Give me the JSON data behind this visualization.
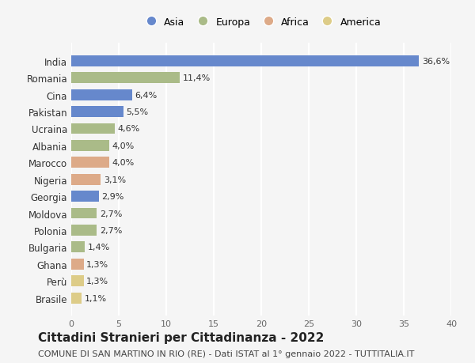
{
  "countries": [
    "India",
    "Romania",
    "Cina",
    "Pakistan",
    "Ucraina",
    "Albania",
    "Marocco",
    "Nigeria",
    "Georgia",
    "Moldova",
    "Polonia",
    "Bulgaria",
    "Ghana",
    "Perù",
    "Brasile"
  ],
  "values": [
    36.6,
    11.4,
    6.4,
    5.5,
    4.6,
    4.0,
    4.0,
    3.1,
    2.9,
    2.7,
    2.7,
    1.4,
    1.3,
    1.3,
    1.1
  ],
  "labels": [
    "36,6%",
    "11,4%",
    "6,4%",
    "5,5%",
    "4,6%",
    "4,0%",
    "4,0%",
    "3,1%",
    "2,9%",
    "2,7%",
    "2,7%",
    "1,4%",
    "1,3%",
    "1,3%",
    "1,1%"
  ],
  "continents": [
    "Asia",
    "Europa",
    "Asia",
    "Asia",
    "Europa",
    "Europa",
    "Africa",
    "Africa",
    "Asia",
    "Europa",
    "Europa",
    "Europa",
    "Africa",
    "America",
    "America"
  ],
  "colors": {
    "Asia": "#6688cc",
    "Europa": "#aabb88",
    "Africa": "#ddaa88",
    "America": "#ddcc88"
  },
  "legend_order": [
    "Asia",
    "Europa",
    "Africa",
    "America"
  ],
  "title": "Cittadini Stranieri per Cittadinanza - 2022",
  "subtitle": "COMUNE DI SAN MARTINO IN RIO (RE) - Dati ISTAT al 1° gennaio 2022 - TUTTITALIA.IT",
  "xlim": [
    0,
    40
  ],
  "xticks": [
    0,
    5,
    10,
    15,
    20,
    25,
    30,
    35,
    40
  ],
  "background_color": "#f5f5f5",
  "grid_color": "#ffffff",
  "bar_height": 0.65,
  "title_fontsize": 11,
  "subtitle_fontsize": 8
}
